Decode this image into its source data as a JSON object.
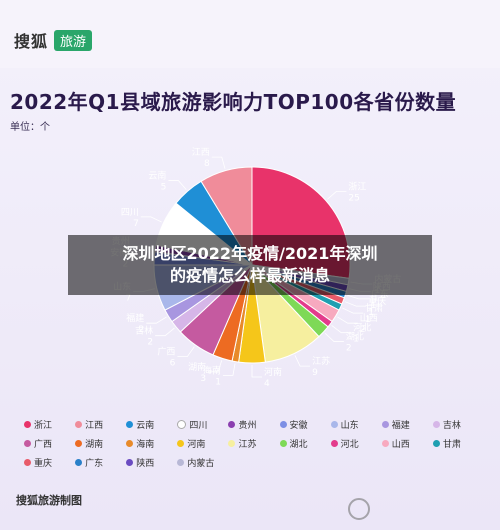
{
  "header": {
    "logo_text": "搜狐",
    "logo_badge": "旅游"
  },
  "title": "2022年Q1县域旅游影响力TOP100各省份数量",
  "unit": "单位：个",
  "footer": "搜狐旅游制图",
  "overlay": {
    "line1": "深圳地区2022年疫情/2021年深圳",
    "line2": "的疫情怎么样最新消息"
  },
  "chart_data": {
    "type": "pie",
    "title": "2022年Q1县域旅游影响力TOP100各省份数量",
    "unit": "单位：个",
    "slices": [
      {
        "name": "浙江",
        "value": 25,
        "color": "#e8336a"
      },
      {
        "name": "内蒙古",
        "value": 1,
        "color": "#b8b8d6"
      },
      {
        "name": "陕西",
        "value": 1,
        "color": "#6a4bc1"
      },
      {
        "name": "广东",
        "value": 1,
        "color": "#2a80c9"
      },
      {
        "name": "重庆",
        "value": 1,
        "color": "#e85b6a"
      },
      {
        "name": "甘肃",
        "value": 1,
        "color": "#1f9fb1"
      },
      {
        "name": "山西",
        "value": 2,
        "color": "#f7a9bf"
      },
      {
        "name": "河北",
        "value": 1,
        "color": "#e33b8c"
      },
      {
        "name": "湖北",
        "value": 2,
        "color": "#7ed957"
      },
      {
        "name": "江苏",
        "value": 9,
        "color": "#f6ef9f"
      },
      {
        "name": "河南",
        "value": 4,
        "color": "#f5c61a"
      },
      {
        "name": "海南",
        "value": 1,
        "color": "#e88a2a"
      },
      {
        "name": "湖南",
        "value": 3,
        "color": "#ed6b22"
      },
      {
        "name": "广西",
        "value": 6,
        "color": "#c55aa0"
      },
      {
        "name": "吉林",
        "value": 2,
        "color": "#d6b6e8"
      },
      {
        "name": "福建",
        "value": 2,
        "color": "#a896e0"
      },
      {
        "name": "山东",
        "value": 7,
        "color": "#a9b7ea"
      },
      {
        "name": "安徽",
        "value": 2,
        "color": "#7d8fe5"
      },
      {
        "name": "贵州",
        "value": 1,
        "color": "#8b3fb0"
      },
      {
        "name": "四川",
        "value": 7,
        "color": "#ffffff"
      },
      {
        "name": "云南",
        "value": 5,
        "color": "#1f8fd6"
      },
      {
        "name": "江西",
        "value": 8,
        "color": "#f08c9a"
      }
    ],
    "legend": [
      {
        "name": "浙江",
        "color": "#e8336a"
      },
      {
        "name": "江西",
        "color": "#f08c9a"
      },
      {
        "name": "云南",
        "color": "#1f8fd6"
      },
      {
        "name": "四川",
        "color": "#ffffff"
      },
      {
        "name": "贵州",
        "color": "#8b3fb0"
      },
      {
        "name": "安徽",
        "color": "#7d8fe5"
      },
      {
        "name": "山东",
        "color": "#a9b7ea"
      },
      {
        "name": "福建",
        "color": "#a896e0"
      },
      {
        "name": "吉林",
        "color": "#d6b6e8"
      },
      {
        "name": "广西",
        "color": "#c55aa0"
      },
      {
        "name": "湖南",
        "color": "#ed6b22"
      },
      {
        "name": "海南",
        "color": "#e88a2a"
      },
      {
        "name": "河南",
        "color": "#f5c61a"
      },
      {
        "name": "江苏",
        "color": "#f6ef9f"
      },
      {
        "name": "湖北",
        "color": "#7ed957"
      },
      {
        "name": "河北",
        "color": "#e33b8c"
      },
      {
        "name": "山西",
        "color": "#f7a9bf"
      },
      {
        "name": "甘肃",
        "color": "#1f9fb1"
      },
      {
        "name": "重庆",
        "color": "#e85b6a"
      },
      {
        "name": "广东",
        "color": "#2a80c9"
      },
      {
        "name": "陕西",
        "color": "#6a4bc1"
      },
      {
        "name": "内蒙古",
        "color": "#b8b8d6"
      }
    ]
  }
}
